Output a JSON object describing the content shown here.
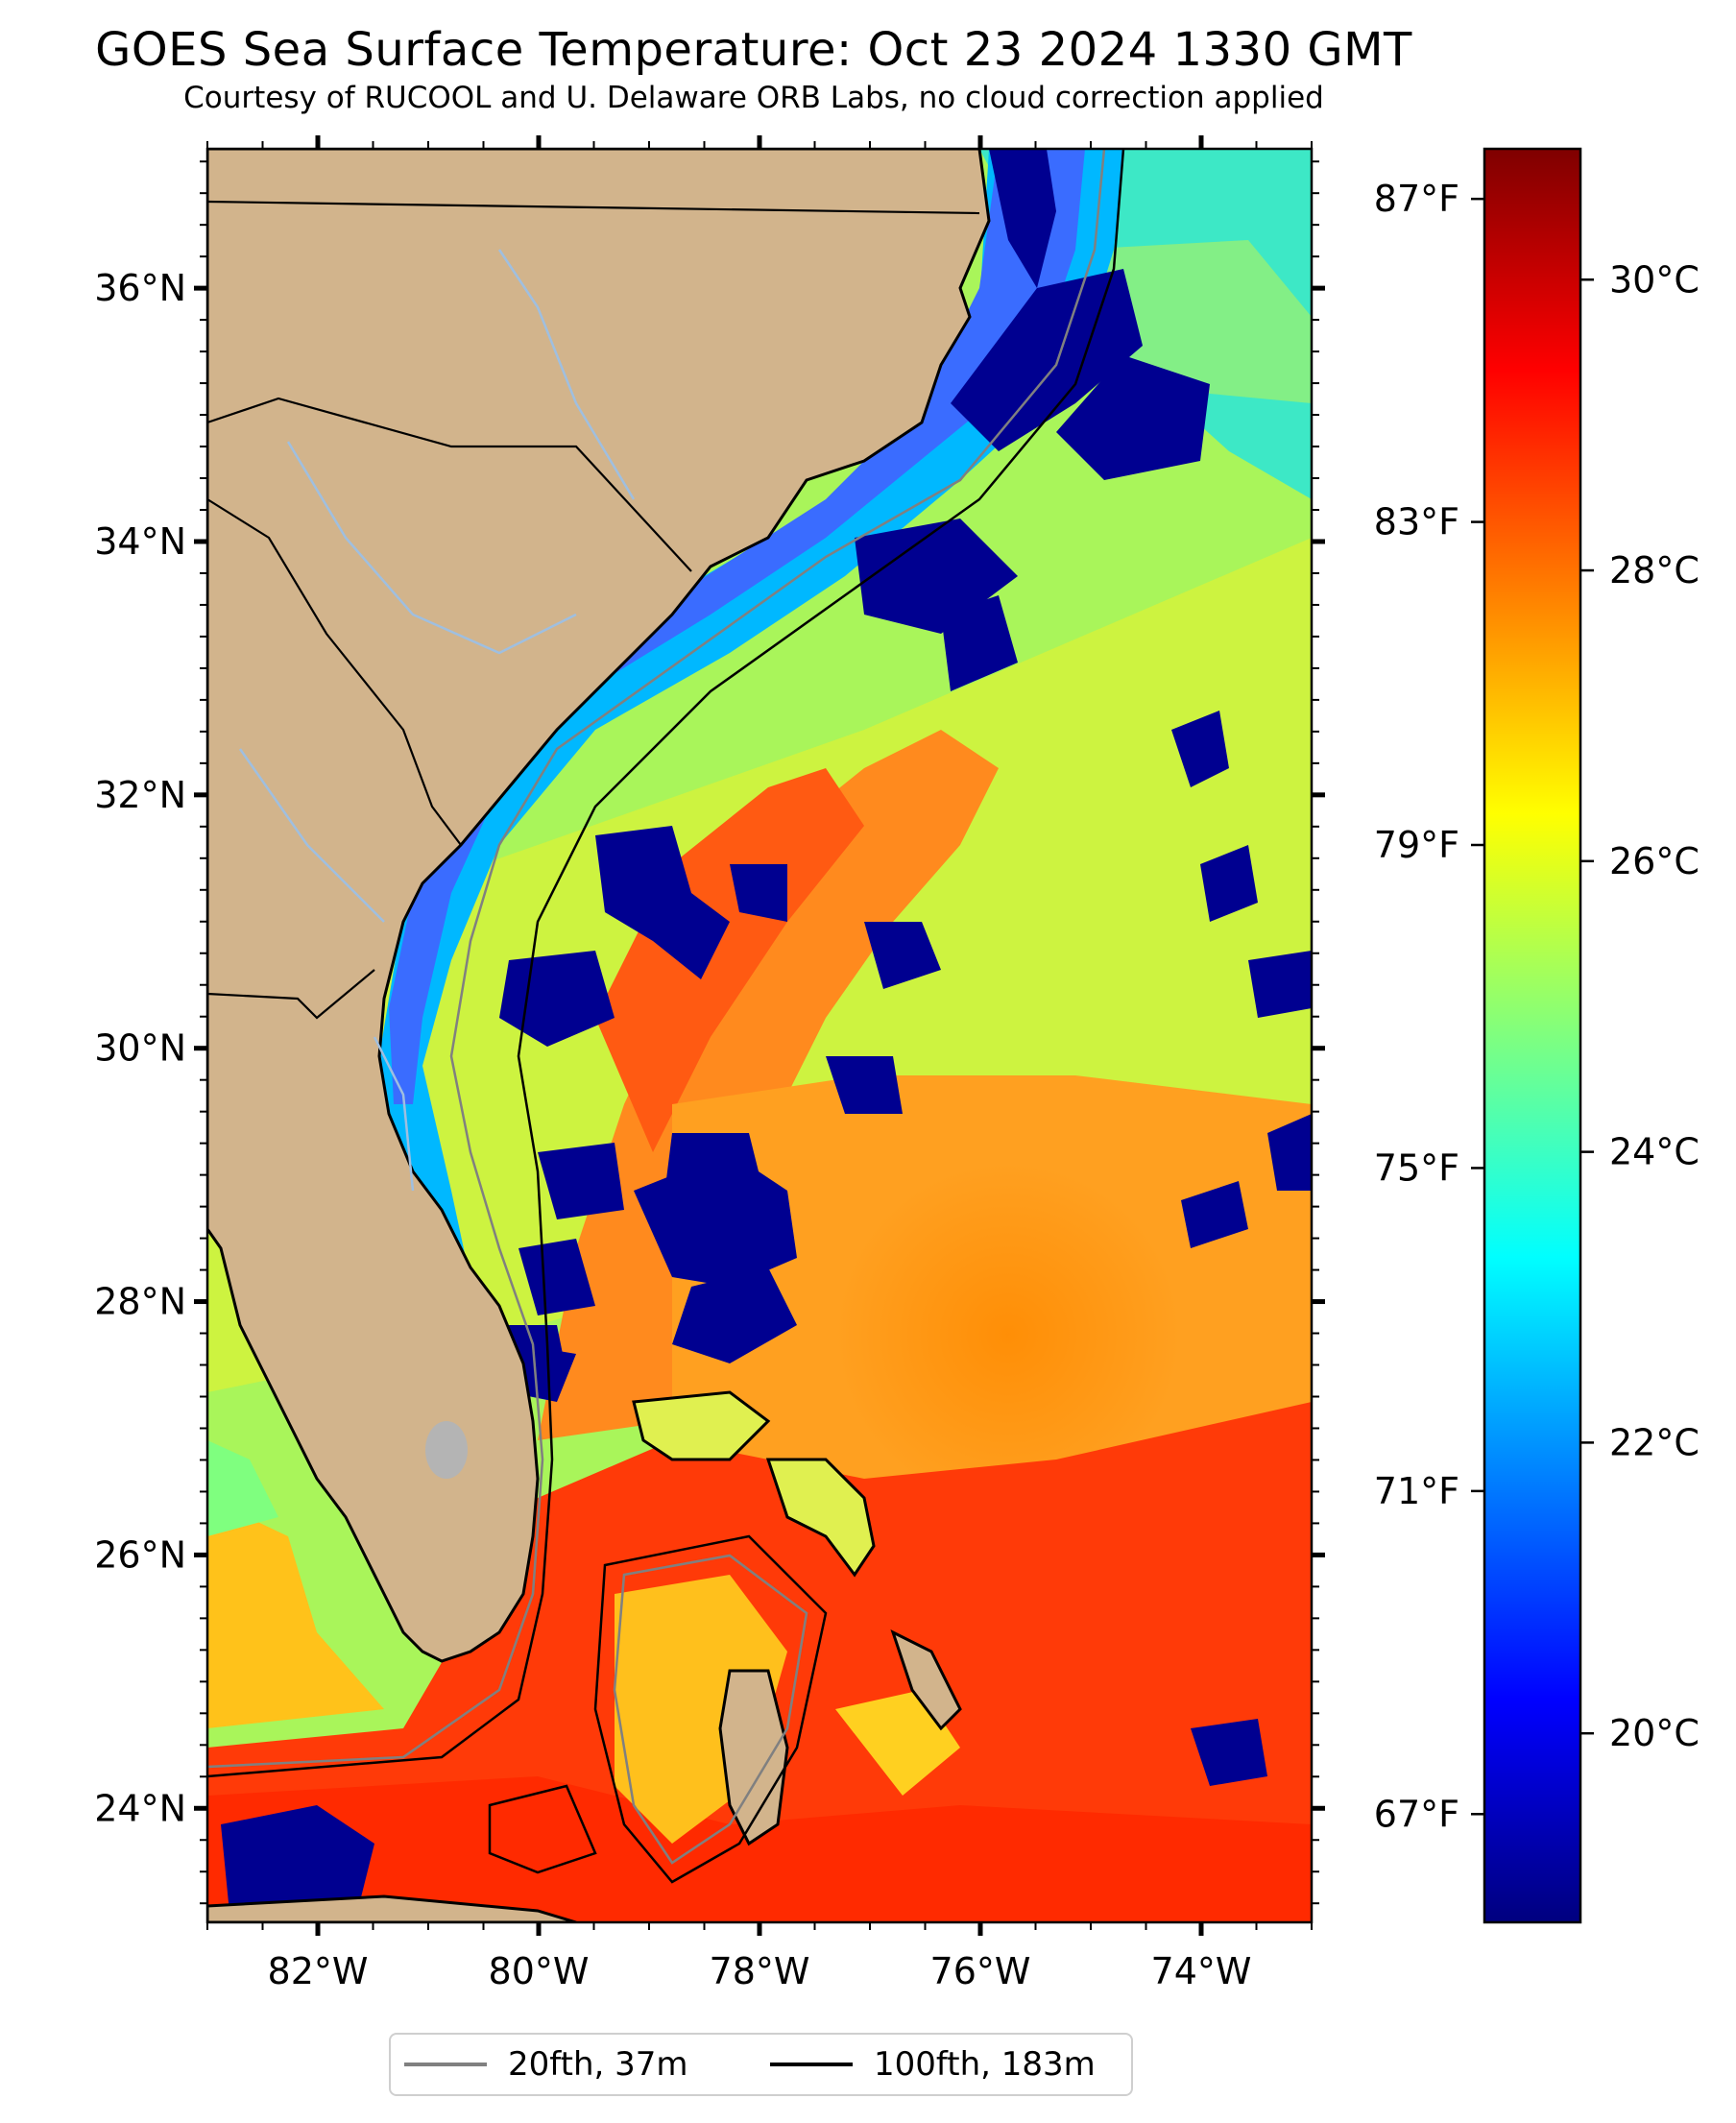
{
  "title": "GOES Sea Surface Temperature: Oct 23 2024 1330 GMT",
  "subtitle": "Courtesy of RUCOOL and U. Delaware ORB Labs, no cloud correction applied",
  "map": {
    "lon_range": [
      -83,
      -73
    ],
    "lat_range": [
      23.1,
      37.1
    ],
    "lat_ticks": [
      {
        "value": 36,
        "label": "36°N"
      },
      {
        "value": 34,
        "label": "34°N"
      },
      {
        "value": 32,
        "label": "32°N"
      },
      {
        "value": 30,
        "label": "30°N"
      },
      {
        "value": 28,
        "label": "28°N"
      },
      {
        "value": 26,
        "label": "26°N"
      },
      {
        "value": 24,
        "label": "24°N"
      }
    ],
    "lon_ticks": [
      {
        "value": -82,
        "label": "82°W"
      },
      {
        "value": -80,
        "label": "80°W"
      },
      {
        "value": -78,
        "label": "78°W"
      },
      {
        "value": -76,
        "label": "76°W"
      },
      {
        "value": -74,
        "label": "74°W"
      }
    ],
    "colors": {
      "land": "#d2b48c",
      "lake": "#b4b4b4",
      "river": "#9fbfe0"
    }
  },
  "colorbar": {
    "celsius_range": [
      18.7,
      30.9
    ],
    "celsius_ticks": [
      {
        "value": 30,
        "label": "30°C"
      },
      {
        "value": 28,
        "label": "28°C"
      },
      {
        "value": 26,
        "label": "26°C"
      },
      {
        "value": 24,
        "label": "24°C"
      },
      {
        "value": 22,
        "label": "22°C"
      },
      {
        "value": 20,
        "label": "20°C"
      }
    ],
    "fahrenheit_ticks": [
      {
        "value": 87,
        "label": "87°F"
      },
      {
        "value": 83,
        "label": "83°F"
      },
      {
        "value": 79,
        "label": "79°F"
      },
      {
        "value": 75,
        "label": "75°F"
      },
      {
        "value": 71,
        "label": "71°F"
      },
      {
        "value": 67,
        "label": "67°F"
      }
    ],
    "colormap": [
      "#00007f",
      "#0000ff",
      "#007fff",
      "#00ffff",
      "#7fff7f",
      "#ffff00",
      "#ff7f00",
      "#ff0000",
      "#7f0000"
    ]
  },
  "legend": [
    {
      "label": "20fth, 37m",
      "color": "#808080"
    },
    {
      "label": "100fth, 183m",
      "color": "#000000"
    }
  ]
}
